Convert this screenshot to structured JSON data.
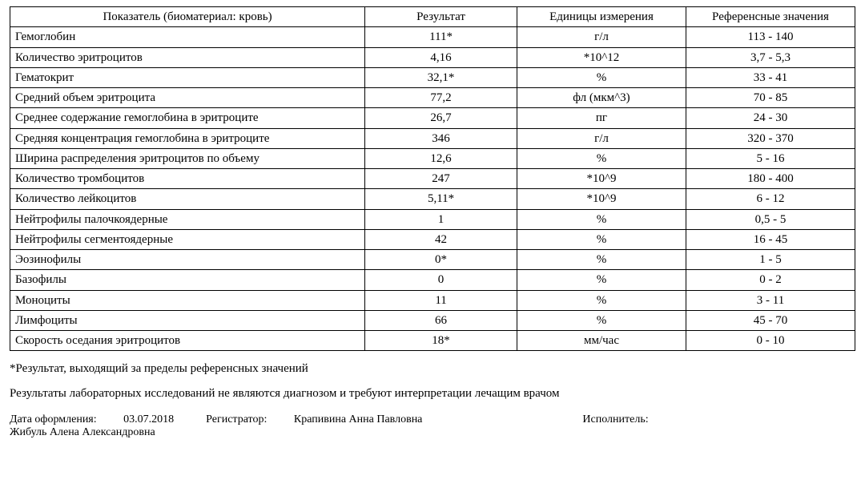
{
  "table": {
    "headers": [
      "Показатель (биоматериал: кровь)",
      "Результат",
      "Единицы измерения",
      "Референсные значения"
    ],
    "rows": [
      [
        "Гемоглобин",
        "111*",
        "г/л",
        "113 - 140"
      ],
      [
        "Количество эритроцитов",
        "4,16",
        "*10^12",
        "3,7 - 5,3"
      ],
      [
        "Гематокрит",
        "32,1*",
        "%",
        "33 - 41"
      ],
      [
        "Средний объем эритроцита",
        "77,2",
        "фл (мкм^3)",
        "70 - 85"
      ],
      [
        "Среднее содержание гемоглобина в эритроците",
        "26,7",
        "пг",
        "24 - 30"
      ],
      [
        "Средняя концентрация гемоглобина в эритроците",
        "346",
        "г/л",
        "320 - 370"
      ],
      [
        "Ширина распределения эритроцитов по объему",
        "12,6",
        "%",
        "5 - 16"
      ],
      [
        "Количество тромбоцитов",
        "247",
        "*10^9",
        "180 - 400"
      ],
      [
        "Количество лейкоцитов",
        "5,11*",
        "*10^9",
        "6 - 12"
      ],
      [
        "Нейтрофилы палочкоядерные",
        "1",
        "%",
        "0,5 - 5"
      ],
      [
        "Нейтрофилы сегментоядерные",
        "42",
        "%",
        "16 - 45"
      ],
      [
        "Эозинофилы",
        "0*",
        "%",
        "1 - 5"
      ],
      [
        "Базофилы",
        "0",
        "%",
        "0 - 2"
      ],
      [
        "Моноциты",
        "11",
        "%",
        "3 - 11"
      ],
      [
        "Лимфоциты",
        "66",
        "%",
        "45 - 70"
      ],
      [
        "Скорость оседания эритроцитов",
        "18*",
        "мм/час",
        "0 - 10"
      ]
    ]
  },
  "notes": {
    "asterisk": "*Результат, выходящий за пределы референсных значений",
    "disclaimer": "Результаты лабораторных исследований не являются диагнозом и требуют интерпретации лечащим врачом"
  },
  "footer": {
    "date_label": "Дата оформления:",
    "date_value": "03.07.2018",
    "registrar_label": "Регистратор:",
    "registrar_value": "Крапивина Анна Павловна",
    "executor_label": "Исполнитель:",
    "executor_name": "Жибуль Алена Александровна"
  }
}
